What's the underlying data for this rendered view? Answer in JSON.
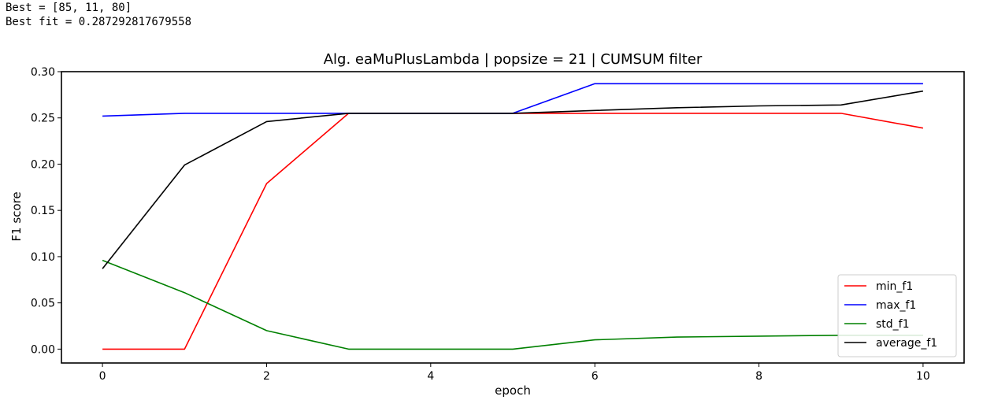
{
  "output": {
    "best_line": "Best = [85, 11, 80]",
    "best_fit_line": "Best fit = 0.287292817679558"
  },
  "chart_data": {
    "type": "line",
    "title": "Alg. eaMuPlusLambda | popsize = 21 | CUMSUM filter",
    "xlabel": "epoch",
    "ylabel": "F1 score",
    "x": [
      0,
      1,
      2,
      3,
      4,
      5,
      6,
      7,
      8,
      9,
      10
    ],
    "xlim": [
      -0.5,
      10.5
    ],
    "ylim": [
      -0.015,
      0.3
    ],
    "x_ticks": [
      0,
      2,
      4,
      6,
      8,
      10
    ],
    "x_tick_labels": [
      "0",
      "2",
      "4",
      "6",
      "8",
      "10"
    ],
    "y_ticks": [
      0.0,
      0.05,
      0.1,
      0.15,
      0.2,
      0.25,
      0.3
    ],
    "y_tick_labels": [
      "0.00",
      "0.05",
      "0.10",
      "0.15",
      "0.20",
      "0.25",
      "0.30"
    ],
    "grid": false,
    "legend_position": "lower-right",
    "series": [
      {
        "name": "min_f1",
        "color": "#ff0000",
        "values": [
          0.0,
          0.0,
          0.179,
          0.255,
          0.255,
          0.255,
          0.255,
          0.255,
          0.255,
          0.255,
          0.239
        ]
      },
      {
        "name": "max_f1",
        "color": "#0000ff",
        "values": [
          0.252,
          0.255,
          0.255,
          0.255,
          0.255,
          0.255,
          0.287,
          0.287,
          0.287,
          0.287,
          0.287
        ]
      },
      {
        "name": "std_f1",
        "color": "#008000",
        "values": [
          0.096,
          0.061,
          0.02,
          0.0,
          0.0,
          0.0,
          0.01,
          0.013,
          0.014,
          0.015,
          0.015
        ]
      },
      {
        "name": "average_f1",
        "color": "#000000",
        "values": [
          0.087,
          0.199,
          0.246,
          0.255,
          0.255,
          0.255,
          0.258,
          0.261,
          0.263,
          0.264,
          0.279
        ]
      }
    ]
  }
}
